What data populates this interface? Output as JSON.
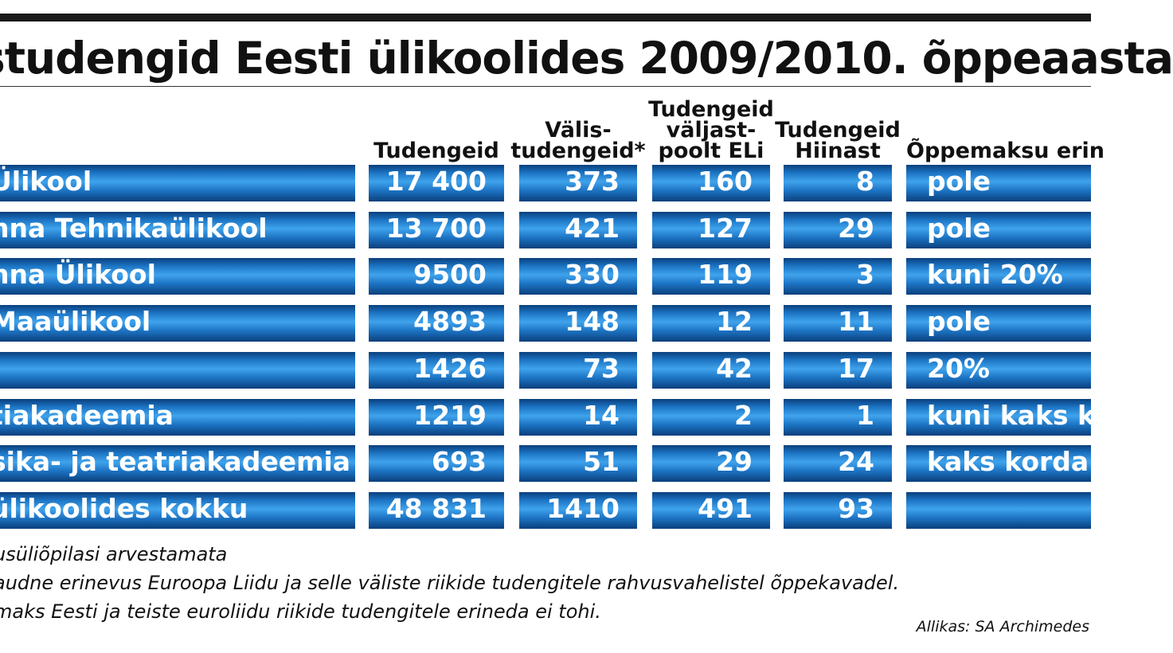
{
  "chart_data": {
    "type": "table",
    "title": "studengid Eesti ülikoolides 2009/2010. õppeaasta",
    "columns": [
      "",
      "Tudengeid",
      "Välis-\ntudengeid*",
      "Tudengeid\nväljast-\npoolt ELi",
      "Tudengeid\nHiinast",
      "Õppemaksu erin"
    ],
    "rows": [
      {
        "name": "Ülikool",
        "tudengeid": "17 400",
        "valis": "373",
        "valjast": "160",
        "hiinast": "8",
        "oppemaks": "pole"
      },
      {
        "name": "nna Tehnikaülikool",
        "tudengeid": "13 700",
        "valis": "421",
        "valjast": "127",
        "hiinast": "29",
        "oppemaks": "pole"
      },
      {
        "name": "nna Ülikool",
        "tudengeid": "9500",
        "valis": "330",
        "valjast": "119",
        "hiinast": "3",
        "oppemaks": "kuni 20%"
      },
      {
        "name": "Maaülikool",
        "tudengeid": "4893",
        "valis": "148",
        "valjast": "12",
        "hiinast": "11",
        "oppemaks": "pole"
      },
      {
        "name": "",
        "tudengeid": "1426",
        "valis": "73",
        "valjast": "42",
        "hiinast": "17",
        "oppemaks": "20%"
      },
      {
        "name": "tiakadeemia",
        "tudengeid": "1219",
        "valis": "14",
        "valjast": "2",
        "hiinast": "1",
        "oppemaks": "kuni kaks k"
      },
      {
        "name": "sika- ja teatriakadeemia",
        "tudengeid": "693",
        "valis": "51",
        "valjast": "29",
        "hiinast": "24",
        "oppemaks": "kaks korda"
      },
      {
        "name": "ülikoolides kokku",
        "tudengeid": "48 831",
        "valis": "1410",
        "valjast": "491",
        "hiinast": "93",
        "oppemaks": ""
      }
    ],
    "footnotes": [
      "usüliõpilasi arvestamata",
      "audne erinevus Euroopa Liidu ja selle väliste riikide tudengitele rahvusvahelistel õppekavadel.",
      "maks Eesti ja teiste euroliidu riikide tudengitele erineda ei tohi."
    ],
    "source": "Allikas: SA Archimedes"
  },
  "colors": {
    "cell_dark": "#0a3f7c",
    "cell_light": "#3fa3ec",
    "cell_text": "#ffffff",
    "header_text": "#111111",
    "top_bar": "#1a1a1a"
  }
}
